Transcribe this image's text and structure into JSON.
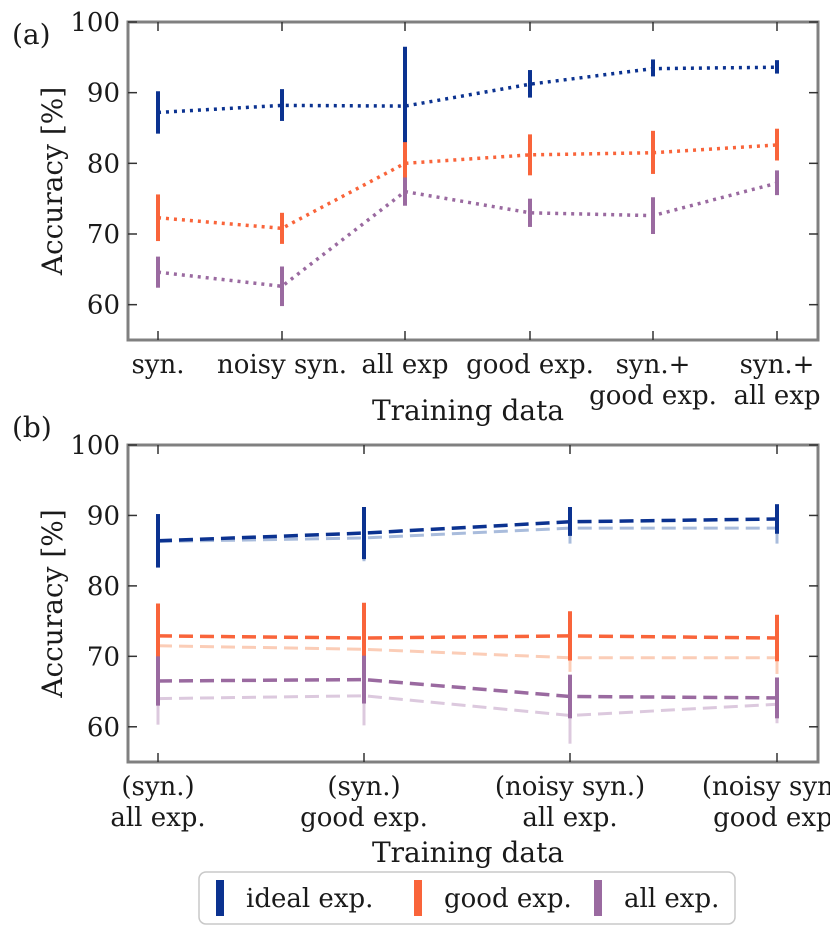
{
  "colors": {
    "ideal": "#0b3290",
    "good": "#f9643a",
    "all": "#9a6aa0",
    "ideal_faint": "#a9bcdc",
    "good_faint": "#fbcdb7",
    "all_faint": "#dcc9de",
    "frame": "#808080"
  },
  "legend": {
    "items": [
      {
        "key": "ideal",
        "label": "ideal exp."
      },
      {
        "key": "good",
        "label": "good exp."
      },
      {
        "key": "all",
        "label": "all exp."
      }
    ]
  },
  "chart_data": [
    {
      "panel_label": "(a)",
      "type": "line",
      "xlabel": "Training data",
      "ylabel": "Accuracy [%]",
      "ylim": [
        55,
        100
      ],
      "yticks": [
        60,
        70,
        80,
        90,
        100
      ],
      "grid": false,
      "line_style": "dotted",
      "categories": [
        [
          "syn."
        ],
        [
          "noisy syn."
        ],
        [
          "all exp"
        ],
        [
          "good exp."
        ],
        [
          "syn.+",
          "good exp."
        ],
        [
          "syn.+",
          "all exp"
        ]
      ],
      "series": [
        {
          "key": "ideal",
          "name": "ideal exp.",
          "values": [
            87.2,
            88.2,
            88.1,
            91.2,
            93.4,
            93.6
          ],
          "err_low": [
            84.2,
            86.0,
            82.5,
            89.3,
            92.3,
            92.7
          ],
          "err_high": [
            90.2,
            90.5,
            96.5,
            93.2,
            94.7,
            94.6
          ]
        },
        {
          "key": "good",
          "name": "good exp.",
          "values": [
            72.3,
            70.8,
            80.0,
            81.2,
            81.5,
            82.6
          ],
          "err_low": [
            69.0,
            68.6,
            77.0,
            78.3,
            78.5,
            80.4
          ],
          "err_high": [
            75.6,
            73.0,
            83.0,
            84.1,
            84.6,
            84.9
          ]
        },
        {
          "key": "all",
          "name": "all exp.",
          "values": [
            64.6,
            62.6,
            76.0,
            73.0,
            72.6,
            77.2
          ],
          "err_low": [
            62.4,
            59.8,
            74.0,
            71.0,
            70.0,
            75.5
          ],
          "err_high": [
            66.8,
            65.4,
            78.0,
            75.0,
            75.2,
            79.0
          ]
        }
      ]
    },
    {
      "panel_label": "(b)",
      "type": "line",
      "xlabel": "Training data",
      "ylabel": "Accuracy [%]",
      "ylim": [
        55,
        100
      ],
      "yticks": [
        60,
        70,
        80,
        90,
        100
      ],
      "grid": false,
      "line_style": "dashed",
      "categories": [
        [
          "(syn.)",
          "all exp."
        ],
        [
          "(syn.)",
          "good exp."
        ],
        [
          "(noisy syn.)",
          "all exp."
        ],
        [
          "(noisy syn.)",
          "good exp."
        ]
      ],
      "series": [
        {
          "key": "ideal_faint",
          "name": "",
          "values": [
            86.3,
            86.8,
            88.2,
            88.2
          ],
          "err_low": [
            83.0,
            83.5,
            86.0,
            86.0
          ],
          "err_high": [
            88.5,
            89.0,
            90.0,
            90.0
          ]
        },
        {
          "key": "good_faint",
          "name": "",
          "values": [
            71.5,
            71.0,
            69.8,
            69.8
          ],
          "err_low": [
            69.5,
            69.0,
            67.8,
            67.5
          ],
          "err_high": [
            73.5,
            73.5,
            71.8,
            72.0
          ]
        },
        {
          "key": "all_faint",
          "name": "",
          "values": [
            64.0,
            64.4,
            61.6,
            63.2
          ],
          "err_low": [
            60.3,
            60.2,
            57.6,
            60.5
          ],
          "err_high": [
            66.5,
            66.8,
            64.5,
            65.5
          ]
        },
        {
          "key": "ideal",
          "name": "ideal exp.",
          "values": [
            86.4,
            87.5,
            89.1,
            89.5
          ],
          "err_low": [
            82.6,
            83.8,
            87.1,
            87.4
          ],
          "err_high": [
            90.2,
            91.2,
            91.2,
            91.6
          ]
        },
        {
          "key": "good",
          "name": "good exp.",
          "values": [
            72.9,
            72.6,
            72.9,
            72.6
          ],
          "err_low": [
            68.3,
            67.6,
            69.4,
            69.3
          ],
          "err_high": [
            77.5,
            77.6,
            76.4,
            75.9
          ]
        },
        {
          "key": "all",
          "name": "all exp.",
          "values": [
            66.5,
            66.7,
            64.3,
            64.1
          ],
          "err_low": [
            63.0,
            63.3,
            61.2,
            61.2
          ],
          "err_high": [
            70.0,
            70.1,
            67.4,
            67.0
          ]
        }
      ]
    }
  ]
}
